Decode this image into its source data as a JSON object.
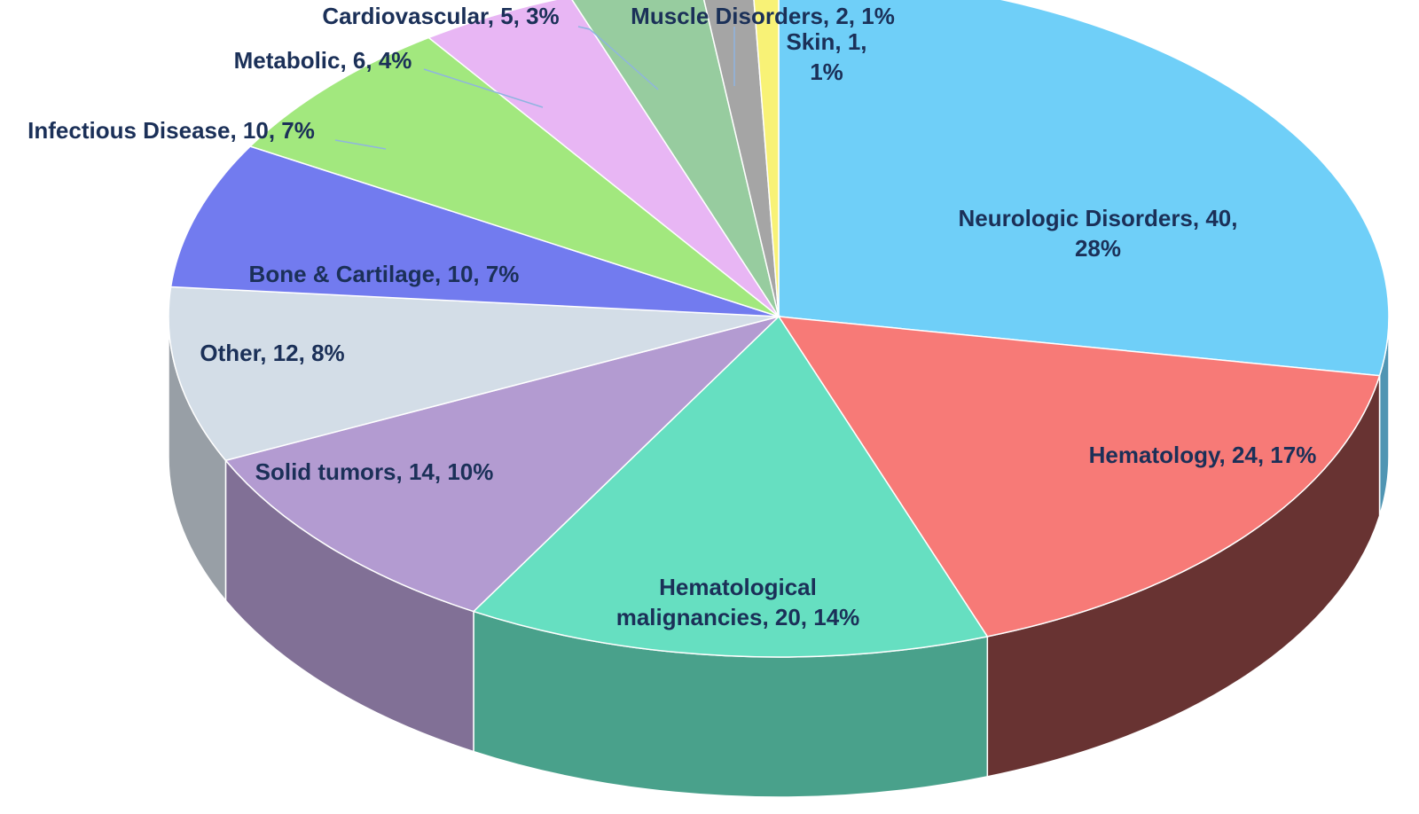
{
  "chart_data": {
    "type": "pie3d",
    "categories": [
      "Neurologic Disorders",
      "Hematology",
      "Hematological malignancies",
      "Solid tumors",
      "Other",
      "Bone & Cartilage",
      "Infectious Disease",
      "Metabolic",
      "Cardiovascular",
      "Muscle Disorders",
      "Skin"
    ],
    "values": [
      40,
      24,
      20,
      14,
      12,
      10,
      10,
      6,
      5,
      2,
      1
    ],
    "value_labels": [
      "Neurologic Disorders, 40,\n28%",
      "Hematology, 24, 17%",
      "Hematological\nmalignancies, 20, 14%",
      "Solid tumors, 14, 10%",
      "Other, 12, 8%",
      "Bone & Cartilage, 10, 7%",
      "Infectious Disease, 10, 7%",
      "Metabolic, 6, 4%",
      "Cardiovascular, 5, 3%",
      "Muscle Disorders, 2, 1%",
      "Skin, 1,\n1%"
    ],
    "colors": [
      "#6fcff8",
      "#f77a77",
      "#66dfc1",
      "#b39bd1",
      "#d3dde7",
      "#727bef",
      "#a2e87e",
      "#e8b6f4",
      "#97cc9f",
      "#a5a5a5",
      "#f8f276"
    ]
  }
}
